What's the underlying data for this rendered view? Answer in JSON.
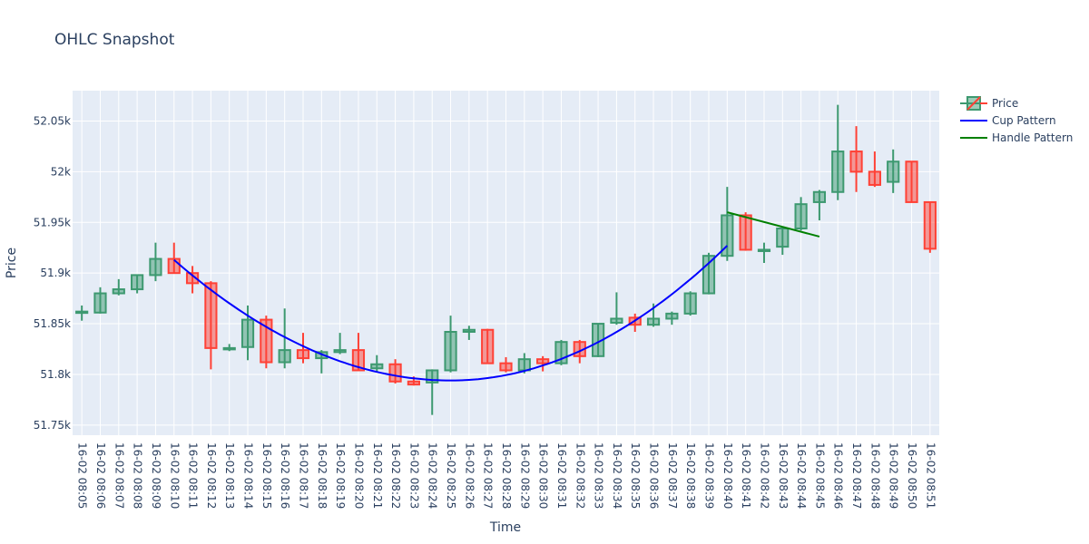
{
  "title": "OHLC Snapshot",
  "colors": {
    "increasing": "#3d9970",
    "decreasing": "#ff4136",
    "increasing_fill": "rgba(61,153,112,0.5)",
    "decreasing_fill": "rgba(255,65,54,0.5)",
    "cup": "#0000ff",
    "handle": "#008000",
    "plot_bg": "#e5ecf6",
    "grid": "#ffffff",
    "text": "#2a3f5f"
  },
  "legend": [
    {
      "name": "Price",
      "type": "candle"
    },
    {
      "name": "Cup Pattern",
      "type": "line",
      "color": "#0000ff"
    },
    {
      "name": "Handle Pattern",
      "type": "line",
      "color": "#008000"
    }
  ],
  "chart_data": {
    "type": "candlestick",
    "title": "OHLC Snapshot",
    "xlabel": "Time",
    "ylabel": "Price",
    "ylim": [
      51740,
      52080
    ],
    "y_ticks": [
      51750,
      51800,
      51850,
      51900,
      51950,
      52000,
      52050
    ],
    "y_tick_labels": [
      "51.75k",
      "51.8k",
      "51.85k",
      "51.9k",
      "51.95k",
      "52k",
      "52.05k"
    ],
    "grid": true,
    "legend_position": "top-right",
    "x": [
      "16-02 08:05",
      "16-02 08:06",
      "16-02 08:07",
      "16-02 08:08",
      "16-02 08:09",
      "16-02 08:10",
      "16-02 08:11",
      "16-02 08:12",
      "16-02 08:13",
      "16-02 08:14",
      "16-02 08:15",
      "16-02 08:16",
      "16-02 08:17",
      "16-02 08:18",
      "16-02 08:19",
      "16-02 08:20",
      "16-02 08:21",
      "16-02 08:22",
      "16-02 08:23",
      "16-02 08:24",
      "16-02 08:25",
      "16-02 08:26",
      "16-02 08:27",
      "16-02 08:28",
      "16-02 08:29",
      "16-02 08:30",
      "16-02 08:31",
      "16-02 08:32",
      "16-02 08:33",
      "16-02 08:34",
      "16-02 08:35",
      "16-02 08:36",
      "16-02 08:37",
      "16-02 08:38",
      "16-02 08:39",
      "16-02 08:40",
      "16-02 08:41",
      "16-02 08:42",
      "16-02 08:43",
      "16-02 08:44",
      "16-02 08:45",
      "16-02 08:46",
      "16-02 08:47",
      "16-02 08:48",
      "16-02 08:49",
      "16-02 08:50",
      "16-02 08:51"
    ],
    "open": [
      51862,
      51861,
      51880,
      51884,
      51898,
      51914,
      51900,
      51890,
      51826,
      51827,
      51854,
      51812,
      51824,
      51816,
      51822,
      51824,
      51806,
      51810,
      51793,
      51792,
      51804,
      51842,
      51844,
      51811,
      51804,
      51815,
      51811,
      51832,
      51818,
      51851,
      51856,
      51849,
      51855,
      51860,
      51880,
      51917,
      51957,
      51923,
      51926,
      51944,
      51970,
      51980,
      52020,
      52000,
      51990,
      52010,
      51970
    ],
    "high": [
      51868,
      51886,
      51894,
      51898,
      51930,
      51930,
      51907,
      51892,
      51830,
      51868,
      51858,
      51865,
      51841,
      51824,
      51841,
      51841,
      51819,
      51815,
      51798,
      51805,
      51858,
      51848,
      51845,
      51817,
      51821,
      51818,
      51834,
      51834,
      51850,
      51881,
      51860,
      51870,
      51862,
      51882,
      51920,
      51985,
      51960,
      51930,
      51945,
      51975,
      51982,
      52066,
      52045,
      52020,
      52022,
      52010,
      51970
    ],
    "low": [
      51853,
      51860,
      51878,
      51880,
      51892,
      51900,
      51880,
      51805,
      51823,
      51814,
      51806,
      51806,
      51811,
      51801,
      51820,
      51804,
      51802,
      51791,
      51789,
      51760,
      51802,
      51834,
      51812,
      51802,
      51801,
      51803,
      51809,
      51811,
      51817,
      51849,
      51842,
      51847,
      51849,
      51858,
      51879,
      51912,
      51922,
      51910,
      51918,
      51942,
      51952,
      51972,
      51980,
      51985,
      51979,
      51970,
      51920
    ],
    "close": [
      51862,
      51880,
      51884,
      51898,
      51914,
      51900,
      51890,
      51826,
      51826,
      51854,
      51812,
      51824,
      51816,
      51822,
      51824,
      51804,
      51810,
      51793,
      51790,
      51804,
      51842,
      51844,
      51811,
      51804,
      51815,
      51811,
      51832,
      51818,
      51850,
      51855,
      51849,
      51855,
      51860,
      51880,
      51917,
      51957,
      51923,
      51923,
      51944,
      51968,
      51980,
      52020,
      52000,
      51987,
      52010,
      51970,
      51924
    ],
    "series": [
      {
        "name": "Price",
        "type": "candlestick"
      },
      {
        "name": "Cup Pattern",
        "type": "line",
        "x_start": "16-02 08:10",
        "x_end": "16-02 08:40",
        "curve": "parabola",
        "y_start": 51913,
        "y_min": 51794,
        "y_min_x": "16-02 08:25",
        "y_end": 51927
      },
      {
        "name": "Handle Pattern",
        "type": "line",
        "x": [
          "16-02 08:40",
          "16-02 08:45"
        ],
        "y": [
          51960,
          51936
        ]
      }
    ]
  }
}
